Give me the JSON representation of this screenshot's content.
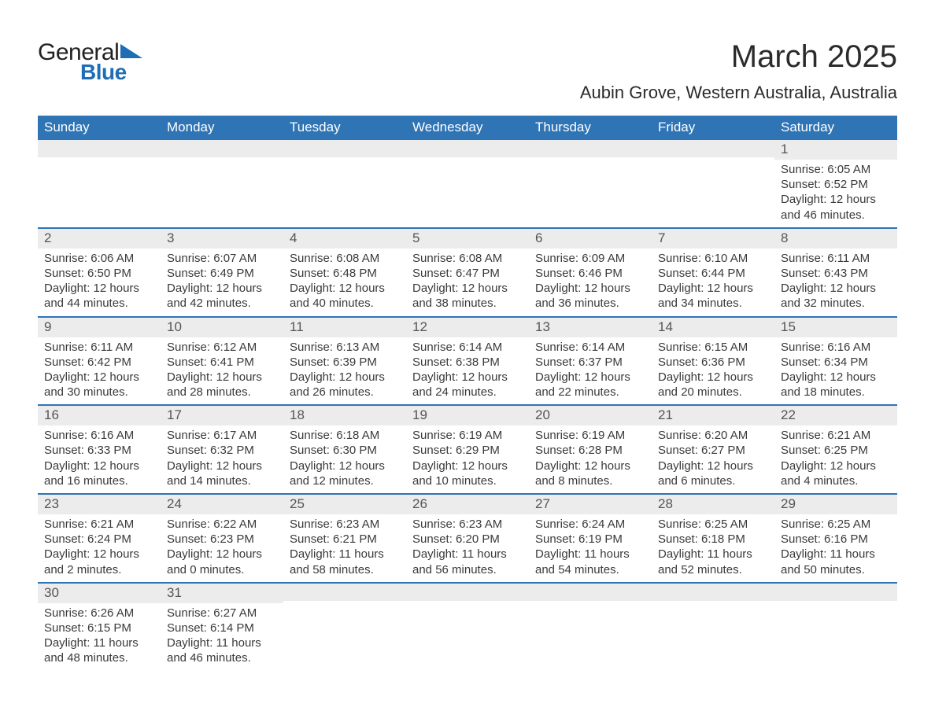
{
  "brand": {
    "name1": "General",
    "name2": "Blue",
    "accent": "#1e6db5"
  },
  "title": "March 2025",
  "location": "Aubin Grove, Western Australia, Australia",
  "colors": {
    "header_bg": "#2f74b5",
    "header_text": "#ffffff",
    "daynum_bg": "#ececec",
    "row_border": "#2f74b5",
    "text": "#3a3a3a",
    "background": "#ffffff"
  },
  "layout": {
    "columns": 7,
    "rows": 6
  },
  "weekdays": [
    "Sunday",
    "Monday",
    "Tuesday",
    "Wednesday",
    "Thursday",
    "Friday",
    "Saturday"
  ],
  "labels": {
    "sunrise": "Sunrise:",
    "sunset": "Sunset:",
    "daylight": "Daylight:"
  },
  "days": [
    null,
    null,
    null,
    null,
    null,
    null,
    {
      "n": 1,
      "sunrise": "6:05 AM",
      "sunset": "6:52 PM",
      "daylight": "12 hours and 46 minutes."
    },
    {
      "n": 2,
      "sunrise": "6:06 AM",
      "sunset": "6:50 PM",
      "daylight": "12 hours and 44 minutes."
    },
    {
      "n": 3,
      "sunrise": "6:07 AM",
      "sunset": "6:49 PM",
      "daylight": "12 hours and 42 minutes."
    },
    {
      "n": 4,
      "sunrise": "6:08 AM",
      "sunset": "6:48 PM",
      "daylight": "12 hours and 40 minutes."
    },
    {
      "n": 5,
      "sunrise": "6:08 AM",
      "sunset": "6:47 PM",
      "daylight": "12 hours and 38 minutes."
    },
    {
      "n": 6,
      "sunrise": "6:09 AM",
      "sunset": "6:46 PM",
      "daylight": "12 hours and 36 minutes."
    },
    {
      "n": 7,
      "sunrise": "6:10 AM",
      "sunset": "6:44 PM",
      "daylight": "12 hours and 34 minutes."
    },
    {
      "n": 8,
      "sunrise": "6:11 AM",
      "sunset": "6:43 PM",
      "daylight": "12 hours and 32 minutes."
    },
    {
      "n": 9,
      "sunrise": "6:11 AM",
      "sunset": "6:42 PM",
      "daylight": "12 hours and 30 minutes."
    },
    {
      "n": 10,
      "sunrise": "6:12 AM",
      "sunset": "6:41 PM",
      "daylight": "12 hours and 28 minutes."
    },
    {
      "n": 11,
      "sunrise": "6:13 AM",
      "sunset": "6:39 PM",
      "daylight": "12 hours and 26 minutes."
    },
    {
      "n": 12,
      "sunrise": "6:14 AM",
      "sunset": "6:38 PM",
      "daylight": "12 hours and 24 minutes."
    },
    {
      "n": 13,
      "sunrise": "6:14 AM",
      "sunset": "6:37 PM",
      "daylight": "12 hours and 22 minutes."
    },
    {
      "n": 14,
      "sunrise": "6:15 AM",
      "sunset": "6:36 PM",
      "daylight": "12 hours and 20 minutes."
    },
    {
      "n": 15,
      "sunrise": "6:16 AM",
      "sunset": "6:34 PM",
      "daylight": "12 hours and 18 minutes."
    },
    {
      "n": 16,
      "sunrise": "6:16 AM",
      "sunset": "6:33 PM",
      "daylight": "12 hours and 16 minutes."
    },
    {
      "n": 17,
      "sunrise": "6:17 AM",
      "sunset": "6:32 PM",
      "daylight": "12 hours and 14 minutes."
    },
    {
      "n": 18,
      "sunrise": "6:18 AM",
      "sunset": "6:30 PM",
      "daylight": "12 hours and 12 minutes."
    },
    {
      "n": 19,
      "sunrise": "6:19 AM",
      "sunset": "6:29 PM",
      "daylight": "12 hours and 10 minutes."
    },
    {
      "n": 20,
      "sunrise": "6:19 AM",
      "sunset": "6:28 PM",
      "daylight": "12 hours and 8 minutes."
    },
    {
      "n": 21,
      "sunrise": "6:20 AM",
      "sunset": "6:27 PM",
      "daylight": "12 hours and 6 minutes."
    },
    {
      "n": 22,
      "sunrise": "6:21 AM",
      "sunset": "6:25 PM",
      "daylight": "12 hours and 4 minutes."
    },
    {
      "n": 23,
      "sunrise": "6:21 AM",
      "sunset": "6:24 PM",
      "daylight": "12 hours and 2 minutes."
    },
    {
      "n": 24,
      "sunrise": "6:22 AM",
      "sunset": "6:23 PM",
      "daylight": "12 hours and 0 minutes."
    },
    {
      "n": 25,
      "sunrise": "6:23 AM",
      "sunset": "6:21 PM",
      "daylight": "11 hours and 58 minutes."
    },
    {
      "n": 26,
      "sunrise": "6:23 AM",
      "sunset": "6:20 PM",
      "daylight": "11 hours and 56 minutes."
    },
    {
      "n": 27,
      "sunrise": "6:24 AM",
      "sunset": "6:19 PM",
      "daylight": "11 hours and 54 minutes."
    },
    {
      "n": 28,
      "sunrise": "6:25 AM",
      "sunset": "6:18 PM",
      "daylight": "11 hours and 52 minutes."
    },
    {
      "n": 29,
      "sunrise": "6:25 AM",
      "sunset": "6:16 PM",
      "daylight": "11 hours and 50 minutes."
    },
    {
      "n": 30,
      "sunrise": "6:26 AM",
      "sunset": "6:15 PM",
      "daylight": "11 hours and 48 minutes."
    },
    {
      "n": 31,
      "sunrise": "6:27 AM",
      "sunset": "6:14 PM",
      "daylight": "11 hours and 46 minutes."
    },
    null,
    null,
    null,
    null,
    null
  ]
}
